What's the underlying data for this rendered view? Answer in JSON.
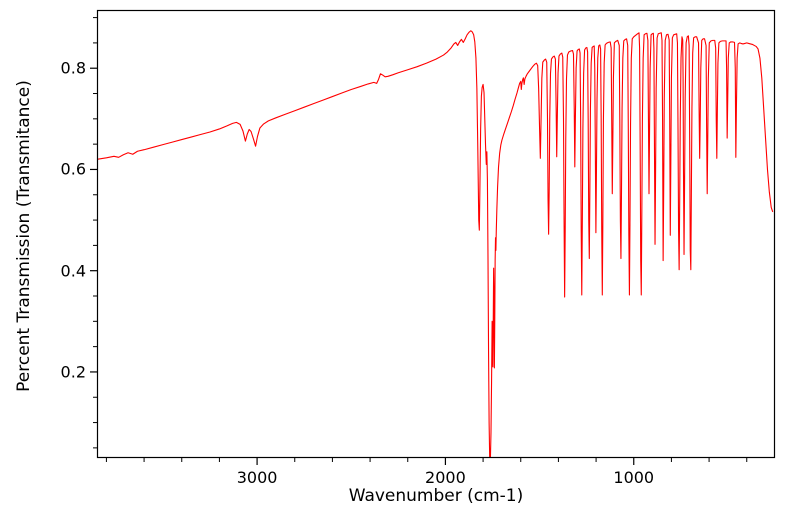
{
  "figure": {
    "background": "#ffffff",
    "axis_color": "#000000"
  },
  "chart_data": {
    "type": "line",
    "title": "",
    "xlabel": "Wavenumber (cm-1)",
    "ylabel": "Percent Transmission (Transmitance)",
    "legend": null,
    "grid": false,
    "line_color": "#ff0000",
    "x_axis_reversed": true,
    "xlim": [
      3850,
      250
    ],
    "ylim": [
      0.03,
      0.915
    ],
    "xticks": [
      3000,
      2000,
      1000
    ],
    "yticks": [
      0.2,
      0.4,
      0.6,
      0.8
    ],
    "x_minor_step": 200,
    "y_minor_step": 0.05,
    "points": [
      [
        3850,
        0.62
      ],
      [
        3800,
        0.623
      ],
      [
        3760,
        0.626
      ],
      [
        3735,
        0.624
      ],
      [
        3710,
        0.629
      ],
      [
        3685,
        0.633
      ],
      [
        3660,
        0.63
      ],
      [
        3635,
        0.636
      ],
      [
        3600,
        0.639
      ],
      [
        3550,
        0.644
      ],
      [
        3500,
        0.649
      ],
      [
        3450,
        0.654
      ],
      [
        3400,
        0.659
      ],
      [
        3350,
        0.664
      ],
      [
        3300,
        0.669
      ],
      [
        3250,
        0.674
      ],
      [
        3200,
        0.68
      ],
      [
        3160,
        0.686
      ],
      [
        3130,
        0.691
      ],
      [
        3110,
        0.693
      ],
      [
        3090,
        0.689
      ],
      [
        3075,
        0.676
      ],
      [
        3062,
        0.656
      ],
      [
        3052,
        0.67
      ],
      [
        3042,
        0.679
      ],
      [
        3032,
        0.675
      ],
      [
        3020,
        0.661
      ],
      [
        3008,
        0.646
      ],
      [
        2998,
        0.665
      ],
      [
        2985,
        0.682
      ],
      [
        2965,
        0.69
      ],
      [
        2940,
        0.696
      ],
      [
        2900,
        0.702
      ],
      [
        2850,
        0.709
      ],
      [
        2800,
        0.716
      ],
      [
        2750,
        0.723
      ],
      [
        2700,
        0.73
      ],
      [
        2650,
        0.737
      ],
      [
        2600,
        0.744
      ],
      [
        2550,
        0.751
      ],
      [
        2500,
        0.758
      ],
      [
        2450,
        0.764
      ],
      [
        2410,
        0.769
      ],
      [
        2380,
        0.772
      ],
      [
        2365,
        0.77
      ],
      [
        2355,
        0.778
      ],
      [
        2345,
        0.789
      ],
      [
        2335,
        0.787
      ],
      [
        2320,
        0.783
      ],
      [
        2305,
        0.784
      ],
      [
        2280,
        0.787
      ],
      [
        2250,
        0.791
      ],
      [
        2200,
        0.797
      ],
      [
        2150,
        0.803
      ],
      [
        2100,
        0.81
      ],
      [
        2050,
        0.818
      ],
      [
        2010,
        0.826
      ],
      [
        1990,
        0.832
      ],
      [
        1970,
        0.84
      ],
      [
        1955,
        0.848
      ],
      [
        1945,
        0.851
      ],
      [
        1935,
        0.845
      ],
      [
        1925,
        0.852
      ],
      [
        1915,
        0.857
      ],
      [
        1905,
        0.851
      ],
      [
        1895,
        0.858
      ],
      [
        1885,
        0.866
      ],
      [
        1875,
        0.871
      ],
      [
        1865,
        0.874
      ],
      [
        1858,
        0.872
      ],
      [
        1850,
        0.866
      ],
      [
        1844,
        0.852
      ],
      [
        1838,
        0.82
      ],
      [
        1833,
        0.76
      ],
      [
        1828,
        0.64
      ],
      [
        1823,
        0.5
      ],
      [
        1820,
        0.48
      ],
      [
        1817,
        0.56
      ],
      [
        1813,
        0.68
      ],
      [
        1809,
        0.745
      ],
      [
        1805,
        0.762
      ],
      [
        1800,
        0.768
      ],
      [
        1795,
        0.752
      ],
      [
        1791,
        0.7
      ],
      [
        1787,
        0.648
      ],
      [
        1783,
        0.61
      ],
      [
        1780,
        0.635
      ],
      [
        1777,
        0.58
      ],
      [
        1774,
        0.43
      ],
      [
        1771,
        0.24
      ],
      [
        1768,
        0.1
      ],
      [
        1765,
        0.03
      ],
      [
        1761,
        0.028
      ],
      [
        1758,
        0.08
      ],
      [
        1755,
        0.18
      ],
      [
        1752,
        0.3
      ],
      [
        1750,
        0.25
      ],
      [
        1748,
        0.21
      ],
      [
        1746,
        0.3
      ],
      [
        1744,
        0.405
      ],
      [
        1742,
        0.35
      ],
      [
        1740,
        0.208
      ],
      [
        1738,
        0.3
      ],
      [
        1736,
        0.42
      ],
      [
        1734,
        0.465
      ],
      [
        1732,
        0.44
      ],
      [
        1730,
        0.478
      ],
      [
        1727,
        0.52
      ],
      [
        1723,
        0.565
      ],
      [
        1718,
        0.605
      ],
      [
        1712,
        0.632
      ],
      [
        1706,
        0.648
      ],
      [
        1700,
        0.658
      ],
      [
        1690,
        0.67
      ],
      [
        1680,
        0.681
      ],
      [
        1670,
        0.692
      ],
      [
        1660,
        0.703
      ],
      [
        1650,
        0.714
      ],
      [
        1640,
        0.726
      ],
      [
        1630,
        0.739
      ],
      [
        1620,
        0.751
      ],
      [
        1612,
        0.762
      ],
      [
        1606,
        0.77
      ],
      [
        1600,
        0.774
      ],
      [
        1597,
        0.758
      ],
      [
        1594,
        0.77
      ],
      [
        1590,
        0.777
      ],
      [
        1586,
        0.781
      ],
      [
        1582,
        0.768
      ],
      [
        1578,
        0.779
      ],
      [
        1572,
        0.784
      ],
      [
        1565,
        0.789
      ],
      [
        1555,
        0.794
      ],
      [
        1545,
        0.799
      ],
      [
        1535,
        0.804
      ],
      [
        1525,
        0.808
      ],
      [
        1517,
        0.81
      ],
      [
        1510,
        0.805
      ],
      [
        1505,
        0.76
      ],
      [
        1500,
        0.68
      ],
      [
        1496,
        0.622
      ],
      [
        1492,
        0.7
      ],
      [
        1488,
        0.78
      ],
      [
        1483,
        0.812
      ],
      [
        1475,
        0.816
      ],
      [
        1468,
        0.818
      ],
      [
        1462,
        0.812
      ],
      [
        1458,
        0.7
      ],
      [
        1455,
        0.54
      ],
      [
        1452,
        0.472
      ],
      [
        1449,
        0.56
      ],
      [
        1446,
        0.7
      ],
      [
        1442,
        0.79
      ],
      [
        1437,
        0.818
      ],
      [
        1430,
        0.822
      ],
      [
        1422,
        0.824
      ],
      [
        1416,
        0.818
      ],
      [
        1412,
        0.72
      ],
      [
        1409,
        0.625
      ],
      [
        1406,
        0.7
      ],
      [
        1402,
        0.79
      ],
      [
        1397,
        0.824
      ],
      [
        1390,
        0.828
      ],
      [
        1382,
        0.83
      ],
      [
        1377,
        0.822
      ],
      [
        1373,
        0.7
      ],
      [
        1370,
        0.5
      ],
      [
        1367,
        0.348
      ],
      [
        1364,
        0.48
      ],
      [
        1361,
        0.66
      ],
      [
        1357,
        0.78
      ],
      [
        1352,
        0.826
      ],
      [
        1345,
        0.832
      ],
      [
        1335,
        0.834
      ],
      [
        1325,
        0.835
      ],
      [
        1320,
        0.828
      ],
      [
        1316,
        0.72
      ],
      [
        1313,
        0.605
      ],
      [
        1310,
        0.7
      ],
      [
        1306,
        0.8
      ],
      [
        1301,
        0.834
      ],
      [
        1295,
        0.837
      ],
      [
        1289,
        0.838
      ],
      [
        1285,
        0.83
      ],
      [
        1282,
        0.7
      ],
      [
        1279,
        0.48
      ],
      [
        1276,
        0.352
      ],
      [
        1273,
        0.5
      ],
      [
        1270,
        0.68
      ],
      [
        1266,
        0.79
      ],
      [
        1261,
        0.836
      ],
      [
        1255,
        0.84
      ],
      [
        1249,
        0.841
      ],
      [
        1245,
        0.832
      ],
      [
        1242,
        0.7
      ],
      [
        1239,
        0.5
      ],
      [
        1236,
        0.424
      ],
      [
        1233,
        0.56
      ],
      [
        1230,
        0.72
      ],
      [
        1226,
        0.81
      ],
      [
        1221,
        0.841
      ],
      [
        1215,
        0.843
      ],
      [
        1210,
        0.844
      ],
      [
        1207,
        0.8
      ],
      [
        1204,
        0.64
      ],
      [
        1201,
        0.475
      ],
      [
        1198,
        0.6
      ],
      [
        1195,
        0.74
      ],
      [
        1191,
        0.82
      ],
      [
        1186,
        0.844
      ],
      [
        1180,
        0.846
      ],
      [
        1176,
        0.838
      ],
      [
        1173,
        0.7
      ],
      [
        1170,
        0.48
      ],
      [
        1167,
        0.352
      ],
      [
        1164,
        0.5
      ],
      [
        1161,
        0.7
      ],
      [
        1157,
        0.81
      ],
      [
        1152,
        0.846
      ],
      [
        1145,
        0.849
      ],
      [
        1135,
        0.851
      ],
      [
        1125,
        0.852
      ],
      [
        1120,
        0.84
      ],
      [
        1117,
        0.7
      ],
      [
        1114,
        0.552
      ],
      [
        1111,
        0.66
      ],
      [
        1108,
        0.78
      ],
      [
        1103,
        0.85
      ],
      [
        1095,
        0.853
      ],
      [
        1085,
        0.855
      ],
      [
        1077,
        0.845
      ],
      [
        1074,
        0.7
      ],
      [
        1071,
        0.5
      ],
      [
        1068,
        0.424
      ],
      [
        1065,
        0.56
      ],
      [
        1062,
        0.72
      ],
      [
        1058,
        0.82
      ],
      [
        1053,
        0.854
      ],
      [
        1045,
        0.857
      ],
      [
        1038,
        0.858
      ],
      [
        1032,
        0.845
      ],
      [
        1029,
        0.68
      ],
      [
        1026,
        0.47
      ],
      [
        1023,
        0.352
      ],
      [
        1020,
        0.5
      ],
      [
        1017,
        0.69
      ],
      [
        1013,
        0.82
      ],
      [
        1008,
        0.858
      ],
      [
        1000,
        0.862
      ],
      [
        990,
        0.865
      ],
      [
        980,
        0.868
      ],
      [
        972,
        0.87
      ],
      [
        969,
        0.84
      ],
      [
        966,
        0.65
      ],
      [
        963,
        0.42
      ],
      [
        960,
        0.352
      ],
      [
        957,
        0.52
      ],
      [
        954,
        0.7
      ],
      [
        950,
        0.82
      ],
      [
        945,
        0.866
      ],
      [
        938,
        0.868
      ],
      [
        930,
        0.869
      ],
      [
        925,
        0.855
      ],
      [
        922,
        0.7
      ],
      [
        919,
        0.552
      ],
      [
        916,
        0.68
      ],
      [
        913,
        0.8
      ],
      [
        908,
        0.866
      ],
      [
        902,
        0.868
      ],
      [
        896,
        0.869
      ],
      [
        893,
        0.84
      ],
      [
        890,
        0.64
      ],
      [
        887,
        0.452
      ],
      [
        884,
        0.6
      ],
      [
        881,
        0.76
      ],
      [
        876,
        0.86
      ],
      [
        870,
        0.868
      ],
      [
        862,
        0.869
      ],
      [
        854,
        0.87
      ],
      [
        850,
        0.855
      ],
      [
        847,
        0.7
      ],
      [
        844,
        0.42
      ],
      [
        841,
        0.56
      ],
      [
        838,
        0.74
      ],
      [
        833,
        0.855
      ],
      [
        826,
        0.866
      ],
      [
        818,
        0.867
      ],
      [
        812,
        0.856
      ],
      [
        809,
        0.7
      ],
      [
        806,
        0.47
      ],
      [
        803,
        0.62
      ],
      [
        800,
        0.78
      ],
      [
        795,
        0.86
      ],
      [
        788,
        0.866
      ],
      [
        780,
        0.867
      ],
      [
        772,
        0.868
      ],
      [
        768,
        0.85
      ],
      [
        765,
        0.68
      ],
      [
        762,
        0.48
      ],
      [
        759,
        0.402
      ],
      [
        756,
        0.54
      ],
      [
        753,
        0.7
      ],
      [
        749,
        0.82
      ],
      [
        744,
        0.862
      ],
      [
        740,
        0.856
      ],
      [
        738,
        0.78
      ],
      [
        736,
        0.6
      ],
      [
        733,
        0.432
      ],
      [
        730,
        0.58
      ],
      [
        727,
        0.74
      ],
      [
        722,
        0.85
      ],
      [
        716,
        0.862
      ],
      [
        710,
        0.864
      ],
      [
        706,
        0.845
      ],
      [
        703,
        0.66
      ],
      [
        700,
        0.44
      ],
      [
        697,
        0.402
      ],
      [
        694,
        0.56
      ],
      [
        691,
        0.72
      ],
      [
        687,
        0.83
      ],
      [
        682,
        0.86
      ],
      [
        674,
        0.862
      ],
      [
        666,
        0.862
      ],
      [
        656,
        0.85
      ],
      [
        653,
        0.72
      ],
      [
        650,
        0.622
      ],
      [
        647,
        0.7
      ],
      [
        644,
        0.8
      ],
      [
        639,
        0.855
      ],
      [
        632,
        0.858
      ],
      [
        624,
        0.858
      ],
      [
        616,
        0.845
      ],
      [
        613,
        0.68
      ],
      [
        610,
        0.552
      ],
      [
        607,
        0.66
      ],
      [
        604,
        0.78
      ],
      [
        599,
        0.85
      ],
      [
        590,
        0.854
      ],
      [
        580,
        0.855
      ],
      [
        570,
        0.855
      ],
      [
        565,
        0.84
      ],
      [
        562,
        0.7
      ],
      [
        559,
        0.622
      ],
      [
        556,
        0.72
      ],
      [
        553,
        0.81
      ],
      [
        548,
        0.85
      ],
      [
        540,
        0.853
      ],
      [
        530,
        0.854
      ],
      [
        520,
        0.854
      ],
      [
        510,
        0.854
      ],
      [
        507,
        0.8
      ],
      [
        504,
        0.662
      ],
      [
        501,
        0.74
      ],
      [
        498,
        0.82
      ],
      [
        493,
        0.85
      ],
      [
        485,
        0.852
      ],
      [
        475,
        0.852
      ],
      [
        465,
        0.851
      ],
      [
        461,
        0.8
      ],
      [
        458,
        0.624
      ],
      [
        455,
        0.72
      ],
      [
        451,
        0.82
      ],
      [
        446,
        0.848
      ],
      [
        438,
        0.85
      ],
      [
        430,
        0.849
      ],
      [
        420,
        0.848
      ],
      [
        410,
        0.849
      ],
      [
        400,
        0.85
      ],
      [
        390,
        0.849
      ],
      [
        380,
        0.848
      ],
      [
        370,
        0.847
      ],
      [
        360,
        0.845
      ],
      [
        350,
        0.843
      ],
      [
        340,
        0.838
      ],
      [
        330,
        0.82
      ],
      [
        320,
        0.78
      ],
      [
        310,
        0.72
      ],
      [
        300,
        0.66
      ],
      [
        290,
        0.6
      ],
      [
        280,
        0.555
      ],
      [
        270,
        0.525
      ],
      [
        262,
        0.516
      ]
    ]
  }
}
